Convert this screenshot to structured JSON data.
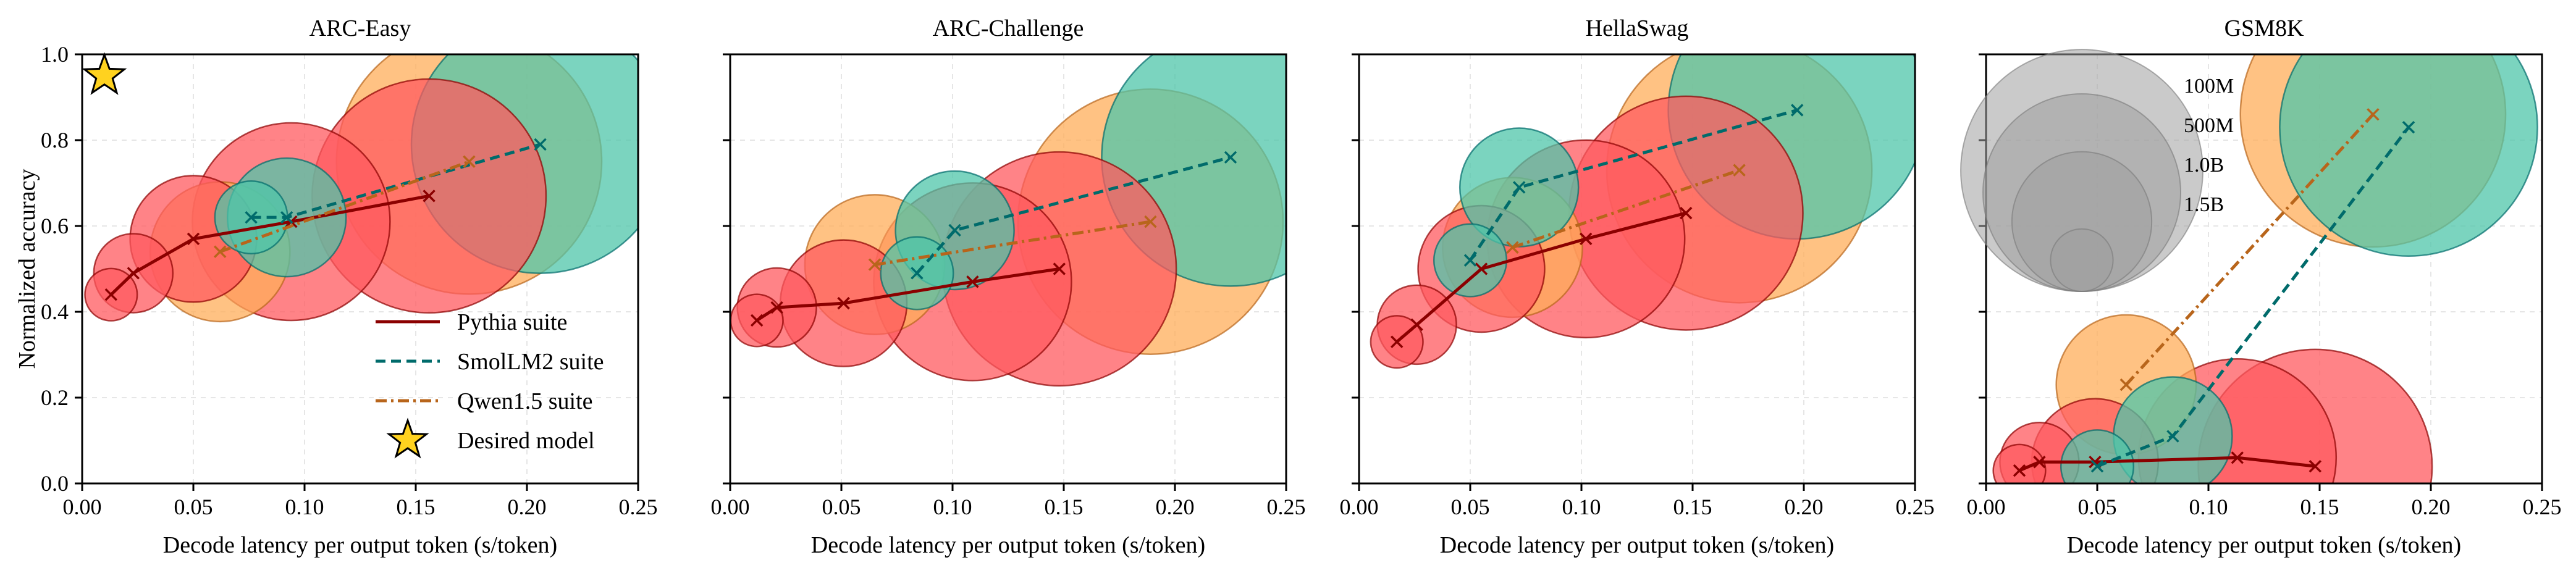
{
  "chart_data": {
    "type": "scatter",
    "ylabel": "Normalized accuracy",
    "xlabel": "Decode latency per output token (s/token)",
    "xlim": [
      0,
      0.25
    ],
    "ylim": [
      0,
      1.0
    ],
    "xticks": [
      "0.00",
      "0.05",
      "0.10",
      "0.15",
      "0.20",
      "0.25"
    ],
    "yticks": [
      "0.0",
      "0.2",
      "0.4",
      "0.6",
      "0.8",
      "1.0"
    ],
    "colors": {
      "pythia_fill": "#ff5a5f",
      "pythia_line": "#8b0000",
      "smollm_fill": "#4fc5a9",
      "smollm_line": "#006b6b",
      "qwen_fill": "#ffad5a",
      "qwen_line": "#b8651b",
      "size_fill": "#9e9e9e",
      "star_fill": "#ffd21f"
    },
    "legend": [
      {
        "key": "pythia",
        "label": "Pythia suite",
        "style": "solid"
      },
      {
        "key": "smollm",
        "label": "SmolLM2 suite",
        "style": "dashed"
      },
      {
        "key": "qwen",
        "label": "Qwen1.5 suite",
        "style": "dashdot"
      },
      {
        "key": "desired",
        "label": "Desired model",
        "style": "star"
      }
    ],
    "size_legend": [
      {
        "label": "100M",
        "params_b": 0.1
      },
      {
        "label": "500M",
        "params_b": 0.5
      },
      {
        "label": "1.0B",
        "params_b": 1.0
      },
      {
        "label": "1.5B",
        "params_b": 1.5
      }
    ],
    "desired_model": {
      "x": 0.01,
      "y": 0.95
    },
    "panels": [
      {
        "title": "ARC-Easy",
        "series": [
          {
            "key": "pythia",
            "name": "Pythia suite",
            "points": [
              {
                "x": 0.013,
                "y": 0.44,
                "params_b": 0.07
              },
              {
                "x": 0.023,
                "y": 0.49,
                "params_b": 0.16
              },
              {
                "x": 0.05,
                "y": 0.57,
                "params_b": 0.41
              },
              {
                "x": 0.094,
                "y": 0.61,
                "params_b": 1.0
              },
              {
                "x": 0.156,
                "y": 0.67,
                "params_b": 1.4
              }
            ]
          },
          {
            "key": "smollm",
            "name": "SmolLM2 suite",
            "points": [
              {
                "x": 0.076,
                "y": 0.62,
                "params_b": 0.135
              },
              {
                "x": 0.092,
                "y": 0.62,
                "params_b": 0.36
              },
              {
                "x": 0.206,
                "y": 0.79,
                "params_b": 1.7
              }
            ]
          },
          {
            "key": "qwen",
            "name": "Qwen1.5 suite",
            "points": [
              {
                "x": 0.062,
                "y": 0.54,
                "params_b": 0.5
              },
              {
                "x": 0.174,
                "y": 0.75,
                "params_b": 1.8
              }
            ]
          }
        ]
      },
      {
        "title": "ARC-Challenge",
        "series": [
          {
            "key": "pythia",
            "name": "Pythia suite",
            "points": [
              {
                "x": 0.012,
                "y": 0.38,
                "params_b": 0.07
              },
              {
                "x": 0.021,
                "y": 0.41,
                "params_b": 0.16
              },
              {
                "x": 0.051,
                "y": 0.42,
                "params_b": 0.41
              },
              {
                "x": 0.109,
                "y": 0.47,
                "params_b": 1.0
              },
              {
                "x": 0.148,
                "y": 0.5,
                "params_b": 1.4
              }
            ]
          },
          {
            "key": "smollm",
            "name": "SmolLM2 suite",
            "points": [
              {
                "x": 0.084,
                "y": 0.49,
                "params_b": 0.135
              },
              {
                "x": 0.101,
                "y": 0.59,
                "params_b": 0.36
              },
              {
                "x": 0.225,
                "y": 0.76,
                "params_b": 1.7
              }
            ]
          },
          {
            "key": "qwen",
            "name": "Qwen1.5 suite",
            "points": [
              {
                "x": 0.065,
                "y": 0.51,
                "params_b": 0.5
              },
              {
                "x": 0.189,
                "y": 0.61,
                "params_b": 1.8
              }
            ]
          }
        ]
      },
      {
        "title": "HellaSwag",
        "series": [
          {
            "key": "pythia",
            "name": "Pythia suite",
            "points": [
              {
                "x": 0.017,
                "y": 0.33,
                "params_b": 0.07
              },
              {
                "x": 0.026,
                "y": 0.37,
                "params_b": 0.16
              },
              {
                "x": 0.055,
                "y": 0.5,
                "params_b": 0.41
              },
              {
                "x": 0.102,
                "y": 0.57,
                "params_b": 1.0
              },
              {
                "x": 0.147,
                "y": 0.63,
                "params_b": 1.4
              }
            ]
          },
          {
            "key": "smollm",
            "name": "SmolLM2 suite",
            "points": [
              {
                "x": 0.05,
                "y": 0.52,
                "params_b": 0.135
              },
              {
                "x": 0.072,
                "y": 0.69,
                "params_b": 0.36
              },
              {
                "x": 0.197,
                "y": 0.87,
                "params_b": 1.7
              }
            ]
          },
          {
            "key": "qwen",
            "name": "Qwen1.5 suite",
            "points": [
              {
                "x": 0.069,
                "y": 0.55,
                "params_b": 0.5
              },
              {
                "x": 0.171,
                "y": 0.73,
                "params_b": 1.8
              }
            ]
          }
        ]
      },
      {
        "title": "GSM8K",
        "series": [
          {
            "key": "pythia",
            "name": "Pythia suite",
            "points": [
              {
                "x": 0.015,
                "y": 0.03,
                "params_b": 0.07
              },
              {
                "x": 0.024,
                "y": 0.05,
                "params_b": 0.16
              },
              {
                "x": 0.049,
                "y": 0.05,
                "params_b": 0.41
              },
              {
                "x": 0.113,
                "y": 0.06,
                "params_b": 1.0
              },
              {
                "x": 0.148,
                "y": 0.04,
                "params_b": 1.4
              }
            ]
          },
          {
            "key": "smollm",
            "name": "SmolLM2 suite",
            "points": [
              {
                "x": 0.05,
                "y": 0.04,
                "params_b": 0.135
              },
              {
                "x": 0.084,
                "y": 0.11,
                "params_b": 0.36
              },
              {
                "x": 0.19,
                "y": 0.83,
                "params_b": 1.7
              }
            ]
          },
          {
            "key": "qwen",
            "name": "Qwen1.5 suite",
            "points": [
              {
                "x": 0.063,
                "y": 0.23,
                "params_b": 0.5
              },
              {
                "x": 0.174,
                "y": 0.86,
                "params_b": 1.8
              }
            ]
          }
        ]
      }
    ]
  }
}
